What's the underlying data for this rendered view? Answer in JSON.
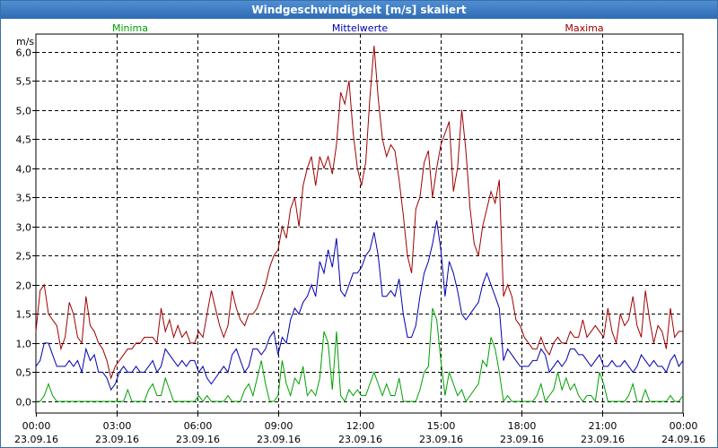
{
  "window": {
    "title": "Windgeschwindigkeit [m/s] skaliert"
  },
  "colors": {
    "min": "#00a000",
    "mean": "#0000b0",
    "max": "#a00000",
    "grid": "#000000"
  },
  "chart_data": {
    "type": "line",
    "title": "Windgeschwindigkeit [m/s] skaliert",
    "ylabel": "m/s",
    "ylim": [
      -0.2,
      6.3
    ],
    "xlim": [
      0,
      24
    ],
    "yticks": [
      "0,0",
      "0,5",
      "1,0",
      "1,5",
      "2,0",
      "2,5",
      "3,0",
      "3,5",
      "4,0",
      "4,5",
      "5,0",
      "5,5",
      "6,0"
    ],
    "ytick_values": [
      0,
      0.5,
      1.0,
      1.5,
      2.0,
      2.5,
      3.0,
      3.5,
      4.0,
      4.5,
      5.0,
      5.5,
      6.0
    ],
    "xticks": [
      {
        "h": 0,
        "time": "00:00",
        "date": "23.09.16"
      },
      {
        "h": 3,
        "time": "03:00",
        "date": "23.09.16"
      },
      {
        "h": 6,
        "time": "06:00",
        "date": "23.09.16"
      },
      {
        "h": 9,
        "time": "09:00",
        "date": "23.09.16"
      },
      {
        "h": 12,
        "time": "12:00",
        "date": "23.09.16"
      },
      {
        "h": 15,
        "time": "15:00",
        "date": "23.09.16"
      },
      {
        "h": 18,
        "time": "18:00",
        "date": "23.09.16"
      },
      {
        "h": 21,
        "time": "21:00",
        "date": "23.09.16"
      },
      {
        "h": 24,
        "time": "00:00",
        "date": "24.09.16"
      }
    ],
    "legend": {
      "min": "Minima",
      "mean": "Mittelwerte",
      "max": "Maxima"
    },
    "step_hours": 0.1667,
    "series": [
      {
        "name": "Maxima",
        "key": "max",
        "values": [
          1.2,
          1.9,
          2.0,
          1.5,
          1.4,
          1.3,
          0.9,
          1.1,
          1.7,
          1.5,
          1.1,
          1.0,
          1.8,
          1.3,
          1.2,
          1.0,
          0.9,
          0.7,
          0.4,
          0.6,
          0.7,
          0.8,
          0.9,
          0.9,
          1.0,
          1.0,
          1.1,
          1.1,
          1.1,
          1.0,
          1.6,
          1.2,
          1.4,
          1.1,
          1.3,
          1.1,
          1.2,
          1.0,
          1.0,
          1.2,
          1.1,
          1.5,
          1.9,
          1.6,
          1.3,
          1.1,
          1.3,
          1.9,
          1.6,
          1.4,
          1.3,
          1.5,
          1.5,
          1.6,
          1.8,
          2.0,
          2.3,
          2.5,
          2.6,
          3.0,
          2.8,
          3.3,
          3.5,
          3.0,
          3.7,
          4.0,
          4.2,
          3.7,
          4.2,
          4.0,
          4.2,
          3.9,
          4.4,
          5.3,
          5.1,
          5.5,
          4.6,
          4.0,
          3.7,
          4.1,
          5.2,
          6.1,
          5.2,
          4.5,
          4.2,
          4.4,
          4.3,
          3.8,
          3.2,
          2.5,
          2.2,
          3.3,
          3.5,
          4.1,
          4.3,
          3.5,
          4.0,
          4.4,
          4.6,
          4.8,
          3.6,
          4.0,
          5.0,
          4.3,
          3.3,
          2.7,
          2.5,
          3.0,
          3.3,
          3.6,
          3.4,
          3.8,
          1.8,
          2.0,
          1.8,
          1.4,
          1.3,
          1.1,
          1.0,
          0.9,
          0.9,
          1.1,
          0.9,
          0.8,
          1.0,
          1.1,
          1.0,
          1.0,
          1.2,
          1.1,
          1.1,
          1.4,
          1.1,
          1.2,
          1.3,
          1.2,
          1.1,
          1.6,
          1.2,
          1.0,
          1.5,
          1.3,
          1.4,
          1.8,
          1.3,
          1.1,
          1.9,
          1.4,
          1.0,
          1.3,
          1.2,
          0.9,
          1.6,
          1.1,
          1.2,
          1.2
        ]
      },
      {
        "name": "Mittelwerte",
        "key": "mean",
        "values": [
          0.6,
          0.7,
          1.0,
          1.0,
          0.8,
          0.6,
          0.6,
          0.6,
          0.7,
          0.6,
          0.7,
          0.5,
          0.9,
          0.7,
          0.8,
          0.5,
          0.5,
          0.4,
          0.2,
          0.3,
          0.5,
          0.6,
          0.5,
          0.5,
          0.6,
          0.5,
          0.5,
          0.6,
          0.7,
          0.5,
          0.6,
          0.9,
          0.8,
          0.7,
          0.6,
          0.7,
          0.6,
          0.7,
          0.7,
          0.5,
          0.6,
          0.4,
          0.3,
          0.4,
          0.5,
          0.6,
          0.5,
          0.8,
          0.9,
          0.7,
          0.5,
          0.6,
          0.9,
          0.9,
          0.8,
          0.9,
          1.1,
          1.2,
          0.8,
          1.1,
          1.0,
          1.4,
          1.6,
          1.5,
          1.7,
          1.8,
          2.0,
          1.8,
          2.4,
          2.2,
          2.6,
          2.3,
          2.8,
          1.9,
          1.8,
          2.0,
          2.2,
          2.2,
          2.3,
          2.5,
          2.6,
          2.9,
          2.5,
          1.8,
          1.8,
          1.9,
          1.8,
          2.1,
          1.5,
          1.1,
          1.1,
          1.3,
          1.8,
          2.2,
          2.4,
          2.7,
          3.1,
          2.6,
          1.8,
          2.4,
          2.2,
          1.9,
          1.5,
          1.4,
          1.5,
          1.6,
          1.7,
          2.0,
          2.2,
          2.0,
          1.8,
          1.6,
          0.7,
          0.9,
          0.8,
          0.7,
          0.6,
          0.6,
          0.6,
          0.7,
          0.7,
          0.9,
          0.8,
          0.5,
          0.6,
          0.7,
          0.6,
          0.7,
          0.9,
          0.9,
          0.8,
          0.8,
          0.7,
          0.6,
          0.7,
          0.8,
          0.6,
          0.6,
          0.7,
          0.6,
          0.6,
          0.7,
          0.6,
          0.5,
          0.6,
          0.8,
          0.7,
          0.6,
          0.7,
          0.6,
          0.6,
          0.5,
          0.7,
          0.8,
          0.6,
          0.7
        ]
      },
      {
        "name": "Minima",
        "key": "min",
        "values": [
          0.0,
          0.0,
          0.1,
          0.3,
          0.1,
          0.0,
          0.0,
          0.0,
          0.0,
          0.0,
          0.0,
          0.0,
          0.0,
          0.0,
          0.0,
          0.0,
          0.0,
          0.0,
          0.0,
          0.0,
          0.0,
          0.0,
          0.2,
          0.0,
          0.0,
          0.0,
          0.0,
          0.2,
          0.3,
          0.1,
          0.1,
          0.4,
          0.2,
          0.0,
          0.0,
          0.0,
          0.0,
          0.0,
          0.0,
          0.1,
          0.0,
          0.1,
          0.0,
          0.0,
          0.0,
          0.0,
          0.1,
          0.0,
          0.0,
          0.0,
          0.2,
          0.3,
          0.1,
          0.4,
          0.7,
          0.3,
          0.0,
          0.0,
          0.1,
          0.7,
          0.3,
          0.1,
          0.4,
          0.3,
          0.6,
          0.1,
          0.2,
          0.1,
          0.4,
          1.2,
          1.0,
          0.2,
          1.2,
          0.1,
          0.0,
          0.2,
          0.1,
          0.2,
          0.1,
          0.1,
          0.3,
          0.5,
          0.3,
          0.1,
          0.3,
          0.1,
          0.1,
          0.4,
          0.0,
          0.0,
          0.0,
          0.0,
          0.2,
          0.5,
          0.6,
          1.6,
          1.4,
          0.7,
          0.1,
          0.5,
          0.3,
          0.1,
          0.2,
          0.0,
          0.1,
          0.2,
          0.3,
          0.7,
          0.6,
          1.1,
          0.9,
          0.5,
          0.0,
          0.1,
          0.0,
          0.0,
          0.0,
          0.0,
          0.0,
          0.0,
          0.1,
          0.3,
          0.0,
          0.1,
          0.2,
          0.5,
          0.2,
          0.4,
          0.2,
          0.3,
          0.1,
          0.0,
          0.1,
          0.1,
          0.0,
          0.5,
          0.3,
          0.0,
          0.0,
          0.0,
          0.0,
          0.0,
          0.1,
          0.3,
          0.0,
          0.0,
          0.2,
          0.0,
          0.0,
          0.0,
          0.0,
          0.0,
          0.1,
          0.0,
          0.0,
          0.1
        ]
      }
    ]
  }
}
